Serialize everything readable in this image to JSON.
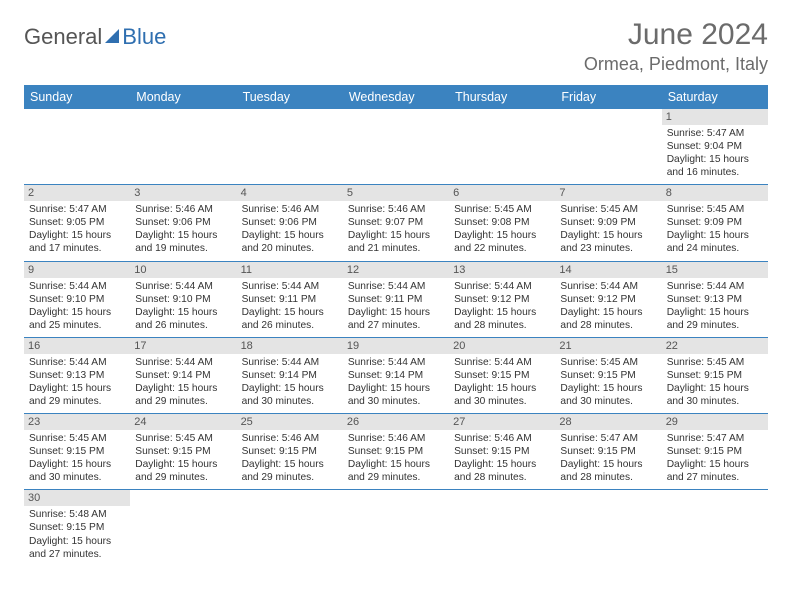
{
  "brand": {
    "word1": "General",
    "word2": "Blue"
  },
  "title": "June 2024",
  "location": "Ormea, Piedmont, Italy",
  "colors": {
    "header_bg": "#3b83c0",
    "header_text": "#ffffff",
    "daynum_bg": "#e4e4e4",
    "cell_border": "#3b83c0",
    "title_color": "#6b6b6b"
  },
  "fonts": {
    "title_size_pt": 22,
    "location_size_pt": 14,
    "header_size_pt": 9,
    "cell_size_pt": 7.5
  },
  "weekdays": [
    "Sunday",
    "Monday",
    "Tuesday",
    "Wednesday",
    "Thursday",
    "Friday",
    "Saturday"
  ],
  "weeks": [
    [
      null,
      null,
      null,
      null,
      null,
      null,
      {
        "day": "1",
        "sunrise": "Sunrise: 5:47 AM",
        "sunset": "Sunset: 9:04 PM",
        "daylight": "Daylight: 15 hours and 16 minutes."
      }
    ],
    [
      {
        "day": "2",
        "sunrise": "Sunrise: 5:47 AM",
        "sunset": "Sunset: 9:05 PM",
        "daylight": "Daylight: 15 hours and 17 minutes."
      },
      {
        "day": "3",
        "sunrise": "Sunrise: 5:46 AM",
        "sunset": "Sunset: 9:06 PM",
        "daylight": "Daylight: 15 hours and 19 minutes."
      },
      {
        "day": "4",
        "sunrise": "Sunrise: 5:46 AM",
        "sunset": "Sunset: 9:06 PM",
        "daylight": "Daylight: 15 hours and 20 minutes."
      },
      {
        "day": "5",
        "sunrise": "Sunrise: 5:46 AM",
        "sunset": "Sunset: 9:07 PM",
        "daylight": "Daylight: 15 hours and 21 minutes."
      },
      {
        "day": "6",
        "sunrise": "Sunrise: 5:45 AM",
        "sunset": "Sunset: 9:08 PM",
        "daylight": "Daylight: 15 hours and 22 minutes."
      },
      {
        "day": "7",
        "sunrise": "Sunrise: 5:45 AM",
        "sunset": "Sunset: 9:09 PM",
        "daylight": "Daylight: 15 hours and 23 minutes."
      },
      {
        "day": "8",
        "sunrise": "Sunrise: 5:45 AM",
        "sunset": "Sunset: 9:09 PM",
        "daylight": "Daylight: 15 hours and 24 minutes."
      }
    ],
    [
      {
        "day": "9",
        "sunrise": "Sunrise: 5:44 AM",
        "sunset": "Sunset: 9:10 PM",
        "daylight": "Daylight: 15 hours and 25 minutes."
      },
      {
        "day": "10",
        "sunrise": "Sunrise: 5:44 AM",
        "sunset": "Sunset: 9:10 PM",
        "daylight": "Daylight: 15 hours and 26 minutes."
      },
      {
        "day": "11",
        "sunrise": "Sunrise: 5:44 AM",
        "sunset": "Sunset: 9:11 PM",
        "daylight": "Daylight: 15 hours and 26 minutes."
      },
      {
        "day": "12",
        "sunrise": "Sunrise: 5:44 AM",
        "sunset": "Sunset: 9:11 PM",
        "daylight": "Daylight: 15 hours and 27 minutes."
      },
      {
        "day": "13",
        "sunrise": "Sunrise: 5:44 AM",
        "sunset": "Sunset: 9:12 PM",
        "daylight": "Daylight: 15 hours and 28 minutes."
      },
      {
        "day": "14",
        "sunrise": "Sunrise: 5:44 AM",
        "sunset": "Sunset: 9:12 PM",
        "daylight": "Daylight: 15 hours and 28 minutes."
      },
      {
        "day": "15",
        "sunrise": "Sunrise: 5:44 AM",
        "sunset": "Sunset: 9:13 PM",
        "daylight": "Daylight: 15 hours and 29 minutes."
      }
    ],
    [
      {
        "day": "16",
        "sunrise": "Sunrise: 5:44 AM",
        "sunset": "Sunset: 9:13 PM",
        "daylight": "Daylight: 15 hours and 29 minutes."
      },
      {
        "day": "17",
        "sunrise": "Sunrise: 5:44 AM",
        "sunset": "Sunset: 9:14 PM",
        "daylight": "Daylight: 15 hours and 29 minutes."
      },
      {
        "day": "18",
        "sunrise": "Sunrise: 5:44 AM",
        "sunset": "Sunset: 9:14 PM",
        "daylight": "Daylight: 15 hours and 30 minutes."
      },
      {
        "day": "19",
        "sunrise": "Sunrise: 5:44 AM",
        "sunset": "Sunset: 9:14 PM",
        "daylight": "Daylight: 15 hours and 30 minutes."
      },
      {
        "day": "20",
        "sunrise": "Sunrise: 5:44 AM",
        "sunset": "Sunset: 9:15 PM",
        "daylight": "Daylight: 15 hours and 30 minutes."
      },
      {
        "day": "21",
        "sunrise": "Sunrise: 5:45 AM",
        "sunset": "Sunset: 9:15 PM",
        "daylight": "Daylight: 15 hours and 30 minutes."
      },
      {
        "day": "22",
        "sunrise": "Sunrise: 5:45 AM",
        "sunset": "Sunset: 9:15 PM",
        "daylight": "Daylight: 15 hours and 30 minutes."
      }
    ],
    [
      {
        "day": "23",
        "sunrise": "Sunrise: 5:45 AM",
        "sunset": "Sunset: 9:15 PM",
        "daylight": "Daylight: 15 hours and 30 minutes."
      },
      {
        "day": "24",
        "sunrise": "Sunrise: 5:45 AM",
        "sunset": "Sunset: 9:15 PM",
        "daylight": "Daylight: 15 hours and 29 minutes."
      },
      {
        "day": "25",
        "sunrise": "Sunrise: 5:46 AM",
        "sunset": "Sunset: 9:15 PM",
        "daylight": "Daylight: 15 hours and 29 minutes."
      },
      {
        "day": "26",
        "sunrise": "Sunrise: 5:46 AM",
        "sunset": "Sunset: 9:15 PM",
        "daylight": "Daylight: 15 hours and 29 minutes."
      },
      {
        "day": "27",
        "sunrise": "Sunrise: 5:46 AM",
        "sunset": "Sunset: 9:15 PM",
        "daylight": "Daylight: 15 hours and 28 minutes."
      },
      {
        "day": "28",
        "sunrise": "Sunrise: 5:47 AM",
        "sunset": "Sunset: 9:15 PM",
        "daylight": "Daylight: 15 hours and 28 minutes."
      },
      {
        "day": "29",
        "sunrise": "Sunrise: 5:47 AM",
        "sunset": "Sunset: 9:15 PM",
        "daylight": "Daylight: 15 hours and 27 minutes."
      }
    ],
    [
      {
        "day": "30",
        "sunrise": "Sunrise: 5:48 AM",
        "sunset": "Sunset: 9:15 PM",
        "daylight": "Daylight: 15 hours and 27 minutes."
      },
      null,
      null,
      null,
      null,
      null,
      null
    ]
  ]
}
